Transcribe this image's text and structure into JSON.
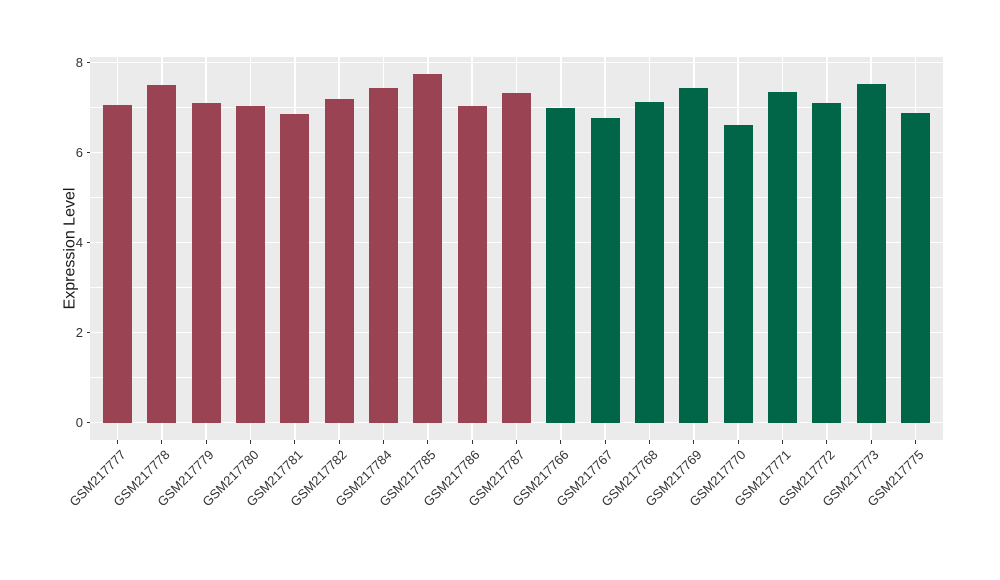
{
  "chart_data": {
    "type": "bar",
    "title": "",
    "xlabel": "",
    "ylabel": "Expression Level",
    "ylim": [
      0,
      8
    ],
    "yticks": [
      0,
      2,
      4,
      6,
      8
    ],
    "yticks_minor": [
      1,
      3,
      5,
      7
    ],
    "grid": "white major+minor horizontal lines and major vertical lines on gray panel",
    "legend": "none",
    "categories": [
      "GSM217777",
      "GSM217778",
      "GSM217779",
      "GSM217780",
      "GSM217781",
      "GSM217782",
      "GSM217784",
      "GSM217785",
      "GSM217786",
      "GSM217787",
      "GSM217766",
      "GSM217767",
      "GSM217768",
      "GSM217769",
      "GSM217770",
      "GSM217771",
      "GSM217772",
      "GSM217773",
      "GSM217775"
    ],
    "bars": [
      {
        "label": "GSM217777",
        "value": 7.05,
        "group": "group-a"
      },
      {
        "label": "GSM217778",
        "value": 7.5,
        "group": "group-a"
      },
      {
        "label": "GSM217779",
        "value": 7.1,
        "group": "group-a"
      },
      {
        "label": "GSM217780",
        "value": 7.04,
        "group": "group-a"
      },
      {
        "label": "GSM217781",
        "value": 6.86,
        "group": "group-a"
      },
      {
        "label": "GSM217782",
        "value": 7.2,
        "group": "group-a"
      },
      {
        "label": "GSM217784",
        "value": 7.44,
        "group": "group-a"
      },
      {
        "label": "GSM217785",
        "value": 7.75,
        "group": "group-a"
      },
      {
        "label": "GSM217786",
        "value": 7.04,
        "group": "group-a"
      },
      {
        "label": "GSM217787",
        "value": 7.32,
        "group": "group-a"
      },
      {
        "label": "GSM217766",
        "value": 7.0,
        "group": "group-b"
      },
      {
        "label": "GSM217767",
        "value": 6.77,
        "group": "group-b"
      },
      {
        "label": "GSM217768",
        "value": 7.12,
        "group": "group-b"
      },
      {
        "label": "GSM217769",
        "value": 7.44,
        "group": "group-b"
      },
      {
        "label": "GSM217770",
        "value": 6.62,
        "group": "group-b"
      },
      {
        "label": "GSM217771",
        "value": 7.35,
        "group": "group-b"
      },
      {
        "label": "GSM217772",
        "value": 7.1,
        "group": "group-b"
      },
      {
        "label": "GSM217773",
        "value": 7.53,
        "group": "group-b"
      },
      {
        "label": "GSM217775",
        "value": 6.88,
        "group": "group-b"
      }
    ],
    "colors": {
      "group-a": "#9A4352",
      "group-b": "#006647",
      "panel_background": "#EBEBEB",
      "gridline": "#FFFFFF",
      "axis_text": "#333333"
    }
  }
}
